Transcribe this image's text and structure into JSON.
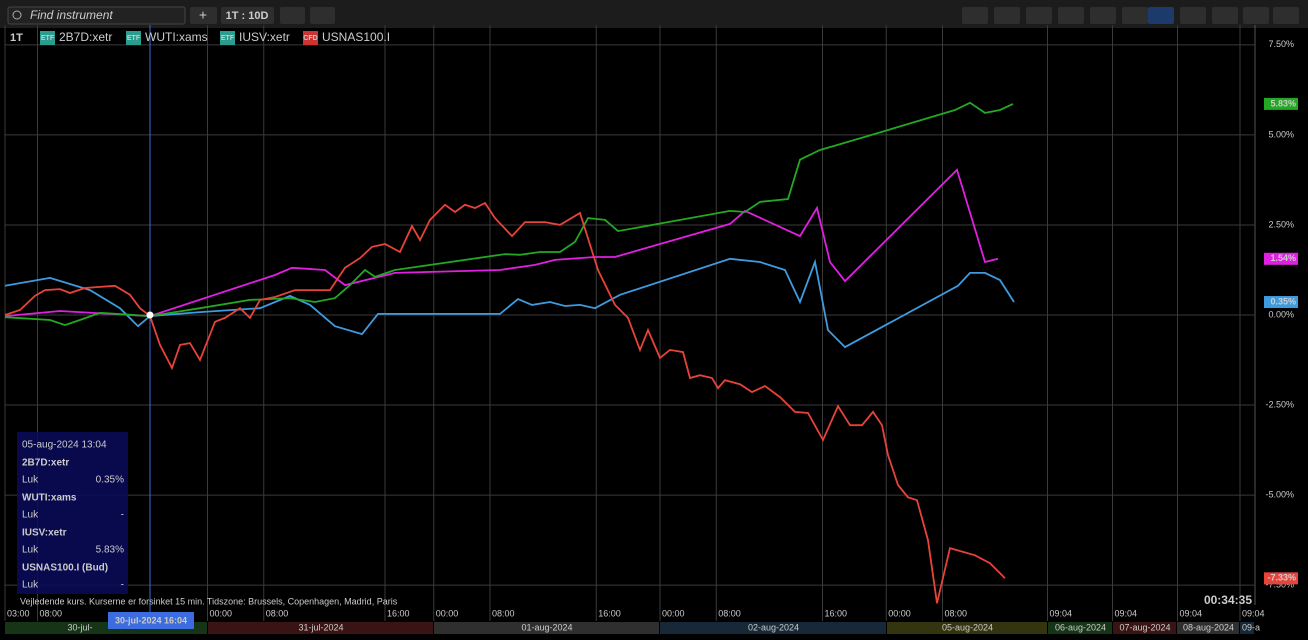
{
  "toolbar": {
    "search_placeholder": "Find instrument",
    "add": "+",
    "period": "1T : 10D"
  },
  "legend": {
    "interval": "1T",
    "items": [
      {
        "badge": "ETF",
        "name": "2B7D:xetr"
      },
      {
        "badge": "ETF",
        "name": "WUTI:xams"
      },
      {
        "badge": "ETF",
        "name": "IUSV:xetr"
      },
      {
        "badge": "CFD",
        "name": "USNAS100.I"
      }
    ]
  },
  "chart_data": {
    "type": "line",
    "xlim": [
      0,
      100
    ],
    "xticks": [
      {
        "value": 0,
        "label": "03:00"
      },
      {
        "value": 2.6,
        "label": "08:00"
      },
      {
        "value": 16.2,
        "label": "00:00"
      },
      {
        "value": 20.7,
        "label": "08:00"
      },
      {
        "value": 30.4,
        "label": "16:00"
      },
      {
        "value": 34.3,
        "label": "00:00"
      },
      {
        "value": 38.8,
        "label": "08:00"
      },
      {
        "value": 47.3,
        "label": "16:00"
      },
      {
        "value": 52.4,
        "label": "00:00"
      },
      {
        "value": 56.9,
        "label": "08:00"
      },
      {
        "value": 65.4,
        "label": "16:00"
      },
      {
        "value": 70.5,
        "label": "00:00"
      },
      {
        "value": 75,
        "label": "08:00"
      },
      {
        "value": 83.4,
        "label": "09:04"
      },
      {
        "value": 88.6,
        "label": "09:04"
      },
      {
        "value": 93.8,
        "label": "09:04"
      },
      {
        "value": 98.8,
        "label": "09:04"
      }
    ],
    "ylim": [
      -8.05,
      8.05
    ],
    "yticks": [
      {
        "value": 7.5,
        "label": "7.50%"
      },
      {
        "value": 5,
        "label": "5.00%"
      },
      {
        "value": 2.5,
        "label": "2.50%"
      },
      {
        "value": 0,
        "label": "0.00%"
      },
      {
        "value": -2.5,
        "label": "-2.50%"
      },
      {
        "value": -5,
        "label": "-5.00%"
      },
      {
        "value": -7.5,
        "label": "-7.50%"
      }
    ],
    "grid": true,
    "series": [
      {
        "name": "2B7D:xetr",
        "color": "#3e9be0",
        "last_label": "0.35%",
        "x": [
          0,
          3.6,
          6.8,
          9.2,
          10.64,
          11.6,
          15.6,
          20.4,
          22.8,
          24.4,
          26.4,
          28.56,
          29.84,
          39.6,
          41.04,
          42.16,
          43.6,
          44.8,
          46,
          47.2,
          49.2,
          58,
          60.4,
          62.4,
          63.6,
          64.8,
          65.84,
          67.2,
          76.24,
          77.2,
          78.4,
          79.6,
          80.72
        ],
        "values": [
          0.81,
          1.03,
          0.69,
          0.19,
          -0.31,
          -0.03,
          0.08,
          0.19,
          0.53,
          0.28,
          -0.31,
          -0.53,
          0.03,
          0.03,
          0.44,
          0.28,
          0.36,
          0.25,
          0.28,
          0.19,
          0.56,
          1.56,
          1.47,
          1.25,
          0.36,
          1.47,
          -0.42,
          -0.89,
          0.81,
          1.17,
          1.17,
          0.97,
          0.36
        ]
      },
      {
        "name": "WUTI:xams",
        "color": "#e020e0",
        "last_label": "1.54%",
        "x": [
          0,
          4.4,
          11.6,
          21.6,
          22.96,
          25.6,
          27.2,
          31.2,
          39.6,
          42.4,
          44,
          47.2,
          48.8,
          58,
          59.2,
          63.6,
          64.96,
          66,
          67.2,
          76.16,
          78.4,
          79.44
        ],
        "values": [
          -0.03,
          0.11,
          -0.03,
          1.11,
          1.31,
          1.25,
          0.83,
          1.17,
          1.25,
          1.39,
          1.53,
          1.61,
          1.61,
          2.53,
          2.89,
          2.19,
          2.97,
          1.47,
          0.94,
          4.03,
          1.47,
          1.56
        ]
      },
      {
        "name": "IUSV:xetr",
        "color": "#22a822",
        "last_label": "5.83%",
        "x": [
          0,
          3.6,
          4.8,
          6,
          7.6,
          11.6,
          15.6,
          19.6,
          22.8,
          24.8,
          26.4,
          27.6,
          28.8,
          29.6,
          31.2,
          40,
          41.2,
          42.8,
          44.4,
          45.6,
          46.64,
          48,
          49.04,
          58,
          59.2,
          60.4,
          62.64,
          63.6,
          65.2,
          67.2,
          76,
          77.2,
          78.4,
          79.6,
          80.64
        ],
        "values": [
          -0.06,
          -0.14,
          -0.28,
          -0.14,
          0.06,
          -0.03,
          0.19,
          0.42,
          0.47,
          0.36,
          0.47,
          0.83,
          1.25,
          1.06,
          1.25,
          1.69,
          1.67,
          1.75,
          1.75,
          2.03,
          2.69,
          2.64,
          2.33,
          2.89,
          2.86,
          3.14,
          3.22,
          4.31,
          4.58,
          4.78,
          5.69,
          5.89,
          5.61,
          5.69,
          5.86
        ]
      },
      {
        "name": "USNAS100.I",
        "color": "#e8433a",
        "last_label": "-7.33%",
        "x": [
          0,
          1.2,
          2.4,
          3.2,
          4.4,
          5.2,
          6.4,
          7.6,
          8.8,
          10,
          10.8,
          11.6,
          12.4,
          13.36,
          14,
          14.8,
          15.6,
          16.8,
          17.6,
          18.8,
          19.6,
          20.4,
          21.6,
          23.2,
          24.4,
          26,
          27.2,
          28.4,
          29.36,
          30.4,
          31.6,
          32.56,
          33.2,
          34,
          35.2,
          36,
          36.8,
          37.6,
          38.4,
          39.2,
          40.56,
          41.6,
          43.2,
          44.4,
          46,
          47.44,
          48.8,
          49.84,
          50.8,
          51.44,
          52.4,
          53.2,
          54.24,
          54.8,
          55.6,
          56.56,
          57.04,
          57.6,
          58.8,
          59.76,
          60.8,
          62,
          63.2,
          64.24,
          65.44,
          66.64,
          67.6,
          68.56,
          69.44,
          70.16,
          70.64,
          71.44,
          72.24,
          72.96,
          73.84,
          74.56,
          75.6,
          77.6,
          78.8,
          80
        ],
        "values": [
          0,
          0.14,
          0.53,
          0.69,
          0.72,
          0.61,
          0.75,
          0.78,
          0.81,
          0.56,
          0.19,
          -0.03,
          -0.83,
          -1.47,
          -0.83,
          -0.78,
          -1.25,
          -0.19,
          -0.08,
          0.19,
          -0.08,
          0.42,
          0.5,
          0.69,
          0.69,
          0.69,
          1.31,
          1.58,
          1.89,
          1.97,
          1.75,
          2.47,
          2.08,
          2.64,
          3.06,
          2.86,
          3.06,
          2.97,
          3.11,
          2.69,
          2.19,
          2.58,
          2.58,
          2.5,
          2.83,
          1.25,
          0.28,
          -0.08,
          -0.97,
          -0.42,
          -1.19,
          -0.97,
          -1.03,
          -1.75,
          -1.67,
          -1.75,
          -2.03,
          -1.81,
          -1.92,
          -2.14,
          -1.97,
          -2.28,
          -2.69,
          -2.72,
          -3.47,
          -2.53,
          -3.06,
          -3.06,
          -2.69,
          -3.06,
          -3.89,
          -4.72,
          -5.06,
          -5.14,
          -6.25,
          -8.0,
          -6.47,
          -6.67,
          -6.89,
          -7.31
        ]
      }
    ],
    "crosshair": {
      "x": 11.6,
      "y": 0,
      "date_label": "30-jul-2024 16:04"
    },
    "date_bands": [
      "30-jul-",
      "31-jul-2024",
      "01-aug-2024",
      "02-aug-2024",
      "05-aug-2024",
      "06-aug-2024",
      "07-aug-2024",
      "08-aug-2024",
      "09-a"
    ]
  },
  "tooltip": {
    "date": "05-aug-2024 13:04",
    "rows": [
      {
        "name": "2B7D:xetr",
        "field": "Luk",
        "value": "0.35%"
      },
      {
        "name": "WUTI:xams",
        "field": "Luk",
        "value": "-"
      },
      {
        "name": "IUSV:xetr",
        "field": "Luk",
        "value": "5.83%"
      },
      {
        "name": "USNAS100.I (Bud)",
        "field": "Luk",
        "value": "-"
      }
    ]
  },
  "footer": {
    "notice": "Vejledende kurs. Kurserne er forsinket 15 min.    Tidszone: Brussels, Copenhagen, Madrid, Paris",
    "clock": "00:34:35"
  }
}
